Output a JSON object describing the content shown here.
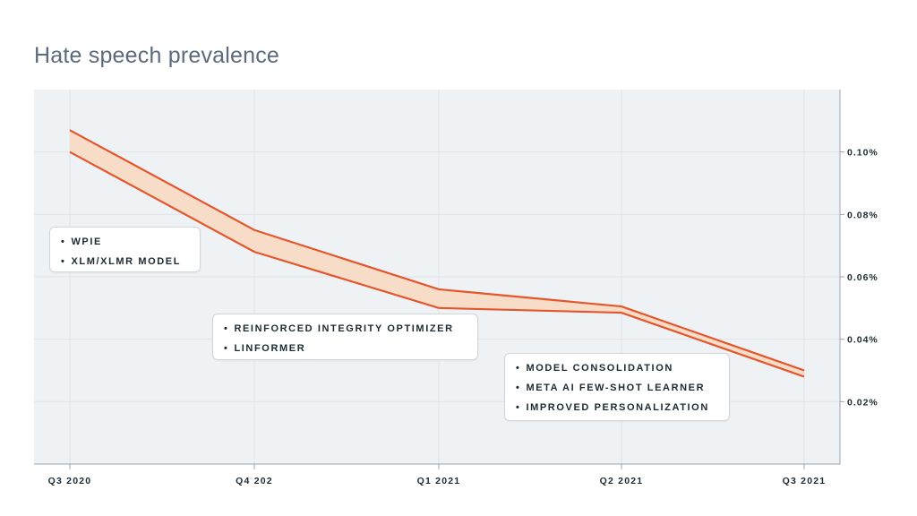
{
  "title": "Hate speech prevalence",
  "colors": {
    "line": "#e4572e",
    "band": "#f7dcc7",
    "plot_bg": "#eff2f4",
    "grid": "#dfe4e8",
    "axis": "#9aa5ae",
    "title": "#5b6a7c"
  },
  "chart_data": {
    "type": "area",
    "title": "Hate speech prevalence",
    "xlabel": "",
    "ylabel": "",
    "categories": [
      "Q3 2020",
      "Q4 202",
      "Q1 2021",
      "Q2 2021",
      "Q3 2021"
    ],
    "series": [
      {
        "values": [
          0.107,
          0.075,
          0.056,
          0.0505,
          0.03
        ]
      },
      {
        "values": [
          0.1,
          0.068,
          0.05,
          0.0485,
          0.028
        ]
      }
    ],
    "ylim": [
      0,
      0.12
    ],
    "yticks": [
      0.02,
      0.04,
      0.06,
      0.08,
      0.1
    ],
    "ytick_labels": [
      "0.02%",
      "0.04%",
      "0.06%",
      "0.08%",
      "0.10%"
    ],
    "grid": true,
    "y_axis_side": "right"
  },
  "callouts": [
    {
      "items": [
        "WPIE",
        "XLM/XLMR MODEL"
      ]
    },
    {
      "items": [
        "REINFORCED INTEGRITY OPTIMIZER",
        "LINFORMER"
      ]
    },
    {
      "items": [
        "MODEL CONSOLIDATION",
        "META AI FEW-SHOT LEARNER",
        "IMPROVED PERSONALIZATION"
      ]
    }
  ],
  "bullet": "•"
}
